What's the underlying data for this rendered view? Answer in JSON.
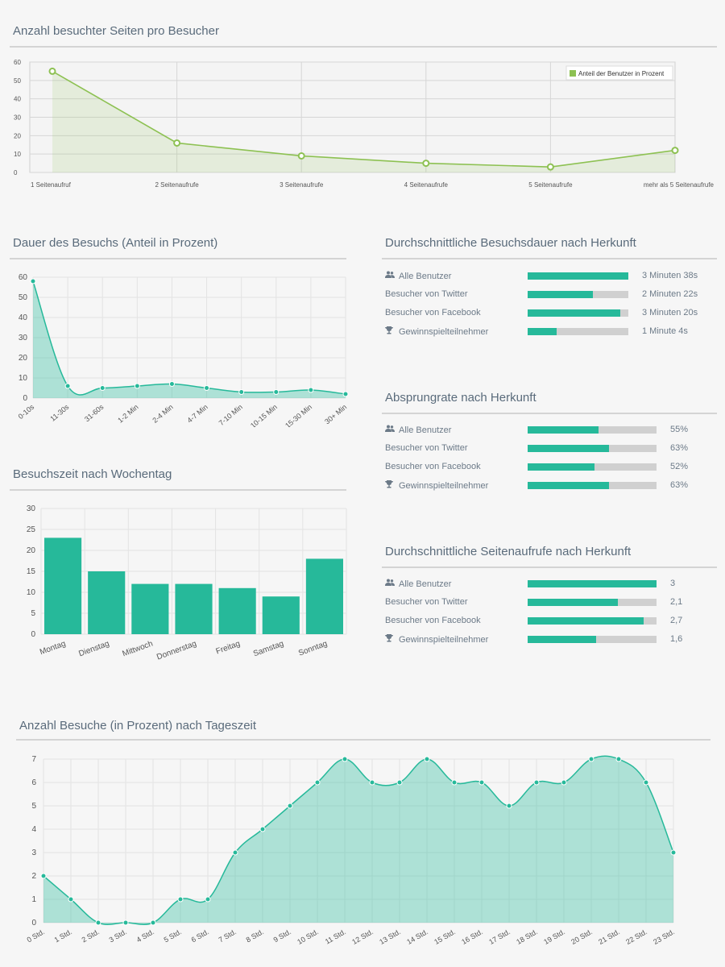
{
  "titles": {
    "pages": "Anzahl besuchter Seiten pro Besucher",
    "duration": "Dauer des Besuchs (Anteil in Prozent)",
    "weekday": "Besuchszeit nach Wochentag",
    "avg_duration": "Durchschnittliche Besuchsdauer nach Herkunft",
    "bounce": "Absprungrate nach Herkunft",
    "avg_pages": "Durchschnittliche Seitenaufrufe nach Herkunft",
    "daytime": "Anzahl Besuche (in Prozent) nach Tageszeit"
  },
  "colors": {
    "green": "#8dc152",
    "teal": "#26b99a",
    "track": "#d0d0d0"
  },
  "chart_data": [
    {
      "type": "line",
      "title": "Anzahl besuchter Seiten pro Besucher",
      "categories": [
        "1 Seitenaufruf",
        "2 Seitenaufrufe",
        "3 Seitenaufrufe",
        "4 Seitenaufrufe",
        "5 Seitenaufrufe",
        "mehr als 5 Seitenaufrufe"
      ],
      "series": [
        {
          "name": "Anteil der Benutzer in Prozent",
          "values": [
            55,
            16,
            9,
            5,
            3,
            12
          ]
        }
      ],
      "ylim": [
        0,
        60
      ],
      "yticks": [
        0,
        10,
        20,
        30,
        40,
        50,
        60
      ],
      "legend": "top-right",
      "grid": true
    },
    {
      "type": "area",
      "title": "Dauer des Besuchs (Anteil in Prozent)",
      "categories": [
        "0-10s",
        "11-30s",
        "31-60s",
        "1-2 Min",
        "2-4 Min",
        "4-7 Min",
        "7-10 Min",
        "10-15 Min",
        "15-30 Min",
        "30+ Min"
      ],
      "values": [
        58,
        6,
        5,
        6,
        7,
        5,
        3,
        3,
        4,
        2
      ],
      "ylim": [
        0,
        60
      ],
      "yticks": [
        0,
        10,
        20,
        30,
        40,
        50,
        60
      ],
      "grid": true
    },
    {
      "type": "bar",
      "title": "Besuchszeit nach Wochentag",
      "categories": [
        "Montag",
        "Dienstag",
        "Mittwoch",
        "Donnerstag",
        "Freitag",
        "Samstag",
        "Sonntag"
      ],
      "values": [
        23,
        15,
        12,
        12,
        11,
        9,
        18
      ],
      "ylim": [
        0,
        30
      ],
      "yticks": [
        0,
        5,
        10,
        15,
        20,
        25,
        30
      ],
      "grid": true
    },
    {
      "type": "area",
      "title": "Anzahl Besuche (in Prozent) nach Tageszeit",
      "categories": [
        "0 Std.",
        "1 Std.",
        "2 Std.",
        "3 Std.",
        "4 Std.",
        "5 Std.",
        "6 Std.",
        "7 Std.",
        "8 Std.",
        "9 Std.",
        "10 Std.",
        "11 Std.",
        "12 Std.",
        "13 Std.",
        "14 Std.",
        "15 Std.",
        "16 Std.",
        "17 Std.",
        "18 Std.",
        "19 Std.",
        "20 Std.",
        "21 Std.",
        "22 Std.",
        "23 Std."
      ],
      "values": [
        2,
        1,
        0,
        0,
        0,
        1,
        1,
        3,
        4,
        5,
        6,
        7,
        6,
        6,
        7,
        6,
        6,
        5,
        6,
        6,
        7,
        7,
        6,
        3
      ],
      "ylim": [
        0,
        7
      ],
      "yticks": [
        0,
        1,
        2,
        3,
        4,
        5,
        6,
        7
      ],
      "grid": true
    }
  ],
  "bar_lists": [
    {
      "key": "avg_duration",
      "rows": [
        {
          "icon": "users-icon",
          "label": "Alle Benutzer",
          "fraction": 1.0,
          "value": "3 Minuten 38s"
        },
        {
          "icon": "",
          "label": "Besucher von Twitter",
          "fraction": 0.65,
          "value": "2 Minuten 22s"
        },
        {
          "icon": "",
          "label": "Besucher von Facebook",
          "fraction": 0.92,
          "value": "3 Minuten 20s"
        },
        {
          "icon": "trophy-icon",
          "label": "Gewinnspielteilnehmer",
          "fraction": 0.29,
          "value": "1 Minute 4s"
        }
      ]
    },
    {
      "key": "bounce",
      "rows": [
        {
          "icon": "users-icon",
          "label": "Alle Benutzer",
          "fraction": 0.55,
          "value": "55%"
        },
        {
          "icon": "",
          "label": "Besucher von Twitter",
          "fraction": 0.63,
          "value": "63%"
        },
        {
          "icon": "",
          "label": "Besucher von Facebook",
          "fraction": 0.52,
          "value": "52%"
        },
        {
          "icon": "trophy-icon",
          "label": "Gewinnspielteilnehmer",
          "fraction": 0.63,
          "value": "63%"
        }
      ]
    },
    {
      "key": "avg_pages",
      "rows": [
        {
          "icon": "users-icon",
          "label": "Alle Benutzer",
          "fraction": 1.0,
          "value": "3"
        },
        {
          "icon": "",
          "label": "Besucher von Twitter",
          "fraction": 0.7,
          "value": "2,1"
        },
        {
          "icon": "",
          "label": "Besucher von Facebook",
          "fraction": 0.9,
          "value": "2,7"
        },
        {
          "icon": "trophy-icon",
          "label": "Gewinnspielteilnehmer",
          "fraction": 0.53,
          "value": "1,6"
        }
      ]
    }
  ]
}
